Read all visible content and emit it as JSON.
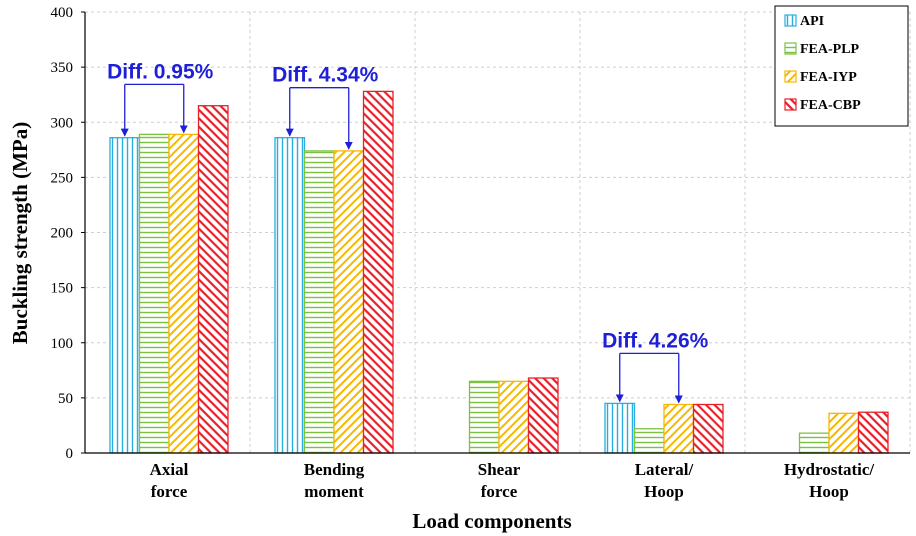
{
  "chart_data": {
    "type": "bar",
    "xlabel": "Load components",
    "ylabel": "Buckling strength (MPa)",
    "ylim": [
      0,
      400
    ],
    "yticks": [
      0,
      50,
      100,
      150,
      200,
      250,
      300,
      350,
      400
    ],
    "grid": true,
    "legend_position": "top-right",
    "categories": [
      [
        "Axial",
        "force"
      ],
      [
        "Bending",
        "moment"
      ],
      [
        "Shear",
        "force"
      ],
      [
        "Lateral/",
        "Hoop"
      ],
      [
        "Hydrostatic/",
        "Hoop"
      ]
    ],
    "series": [
      {
        "name": "API",
        "color": "#29aee0",
        "pattern": "vertical",
        "values": [
          286,
          286,
          null,
          45,
          null
        ]
      },
      {
        "name": "FEA-PLP",
        "color": "#7cc242",
        "pattern": "horizontal",
        "values": [
          289,
          274,
          65,
          22,
          18
        ]
      },
      {
        "name": "FEA-IYP",
        "color": "#f6b800",
        "pattern": "diagonal-down",
        "values": [
          289,
          274,
          65,
          44,
          36
        ]
      },
      {
        "name": "FEA-CBP",
        "color": "#e8202a",
        "pattern": "diagonal-up",
        "values": [
          315,
          328,
          68,
          44,
          37
        ]
      }
    ],
    "annotations": [
      {
        "text": "Diff. 0.95%",
        "category": 0,
        "from_series": 0,
        "to_series": 2
      },
      {
        "text": "Diff. 4.34%",
        "category": 1,
        "from_series": 0,
        "to_series": 2
      },
      {
        "text": "Diff. 4.26%",
        "category": 3,
        "from_series": 0,
        "to_series": 2
      }
    ]
  }
}
